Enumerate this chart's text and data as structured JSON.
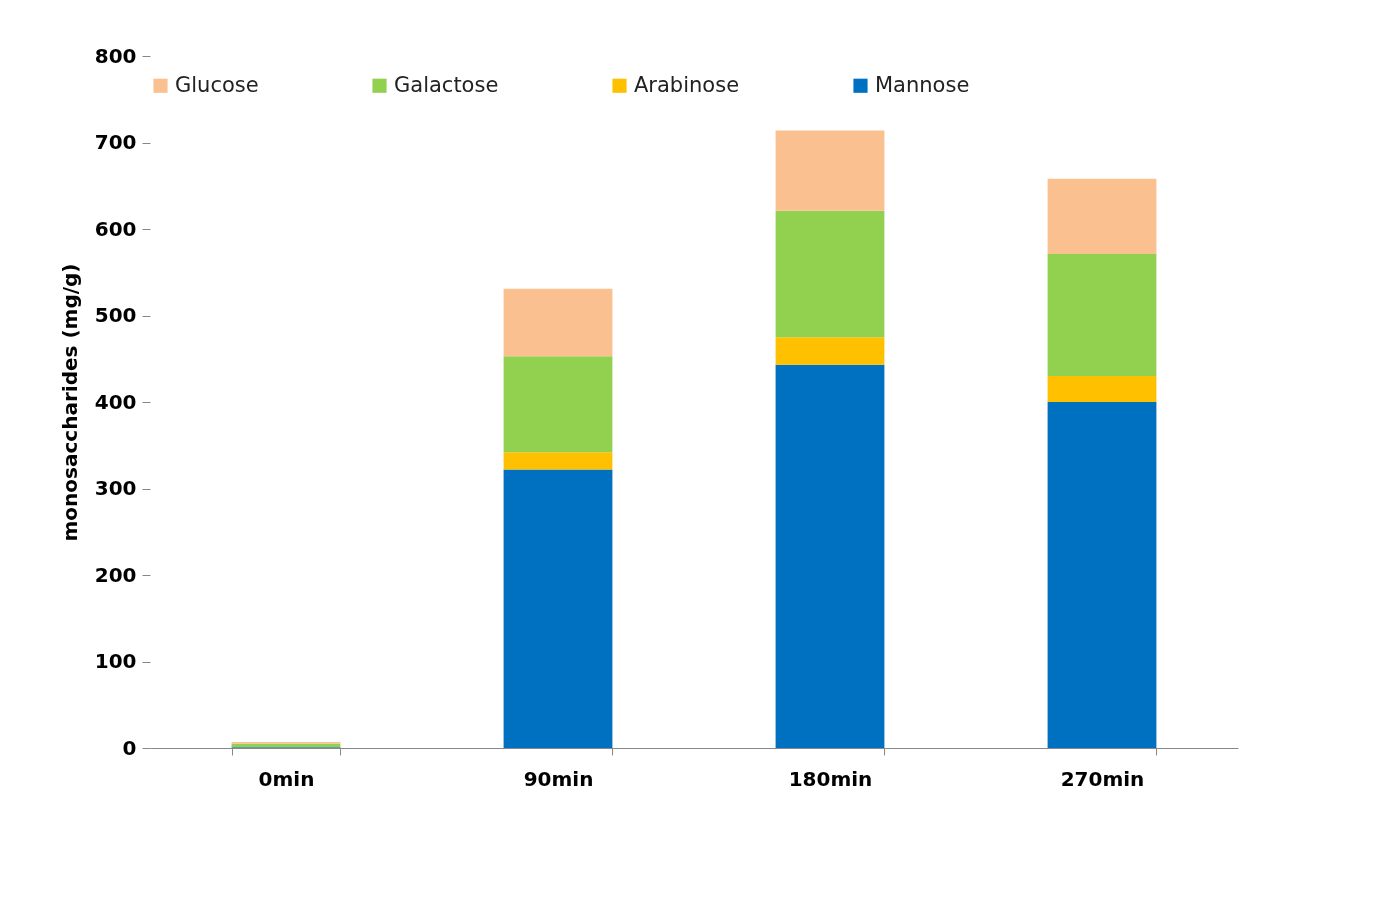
{
  "chart_data": {
    "type": "bar",
    "stacked": true,
    "ylabel": "monosaccharides (mg/g)",
    "categories": [
      "0min",
      "90min",
      "180min",
      "270min"
    ],
    "series": [
      {
        "name": "Mannose",
        "color": "#0070c0",
        "values": [
          1,
          322,
          443,
          400
        ]
      },
      {
        "name": "Arabinose",
        "color": "#ffc000",
        "values": [
          0,
          20,
          32,
          30
        ]
      },
      {
        "name": "Galactose",
        "color": "#92d050",
        "values": [
          4,
          111,
          146,
          141
        ]
      },
      {
        "name": "Glucose",
        "color": "#fac090",
        "values": [
          2,
          78,
          93,
          87
        ]
      }
    ],
    "ylim": [
      0,
      800
    ],
    "yticks": [
      0,
      100,
      200,
      300,
      400,
      500,
      600,
      700,
      800
    ],
    "grid": false,
    "legend": "top"
  }
}
